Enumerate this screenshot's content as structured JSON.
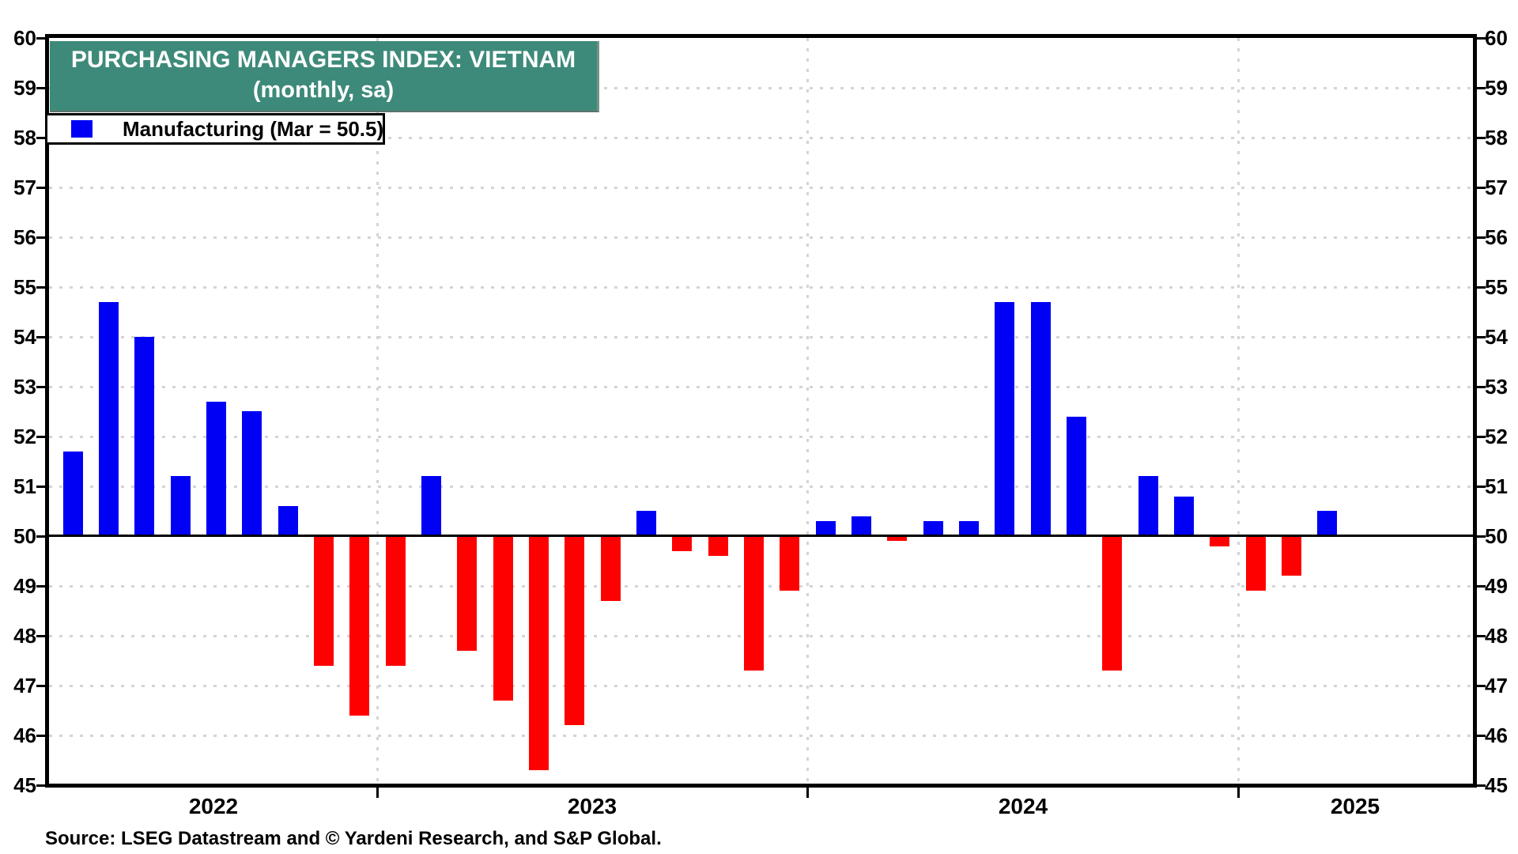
{
  "title": {
    "line1": "PURCHASING MANAGERS INDEX: VIETNAM",
    "line2": "(monthly, sa)"
  },
  "legend": {
    "label": "Manufacturing (Mar = 50.5)"
  },
  "source": "Source: LSEG Datastream and © Yardeni Research, and S&P Global.",
  "colors": {
    "title_band": "#3e8a7a",
    "bar_above": "#0000f5",
    "bar_below": "#ff0000",
    "grid": "#d4d4d4",
    "axis": "#000000"
  },
  "chart_data": {
    "type": "bar",
    "title": "Purchasing Managers Index: Vietnam (monthly, sa)",
    "xlabel": "",
    "ylabel": "",
    "ylim": [
      45,
      60
    ],
    "ytick_step": 1,
    "grid": "dotted-horizontal-and-year-boundaries",
    "legend_position": "top-left",
    "baseline": 50,
    "series_name": "Manufacturing",
    "latest_label": "Mar = 50.5",
    "year_labels": [
      "2022",
      "2023",
      "2024",
      "2025"
    ],
    "x": [
      "2022-04",
      "2022-05",
      "2022-06",
      "2022-07",
      "2022-08",
      "2022-09",
      "2022-10",
      "2022-11",
      "2022-12",
      "2023-01",
      "2023-02",
      "2023-03",
      "2023-04",
      "2023-05",
      "2023-06",
      "2023-07",
      "2023-08",
      "2023-09",
      "2023-10",
      "2023-11",
      "2023-12",
      "2024-01",
      "2024-02",
      "2024-03",
      "2024-04",
      "2024-05",
      "2024-06",
      "2024-07",
      "2024-08",
      "2024-09",
      "2024-10",
      "2024-11",
      "2024-12",
      "2025-01",
      "2025-02",
      "2025-03"
    ],
    "values": [
      51.7,
      54.7,
      54.0,
      51.2,
      52.7,
      52.5,
      50.6,
      47.4,
      46.4,
      47.4,
      51.2,
      47.7,
      46.7,
      45.3,
      46.2,
      48.7,
      50.5,
      49.7,
      49.6,
      47.3,
      48.9,
      50.3,
      50.4,
      49.9,
      50.3,
      50.3,
      54.7,
      54.7,
      52.4,
      47.3,
      51.2,
      50.8,
      49.8,
      48.9,
      49.2,
      50.5
    ]
  }
}
